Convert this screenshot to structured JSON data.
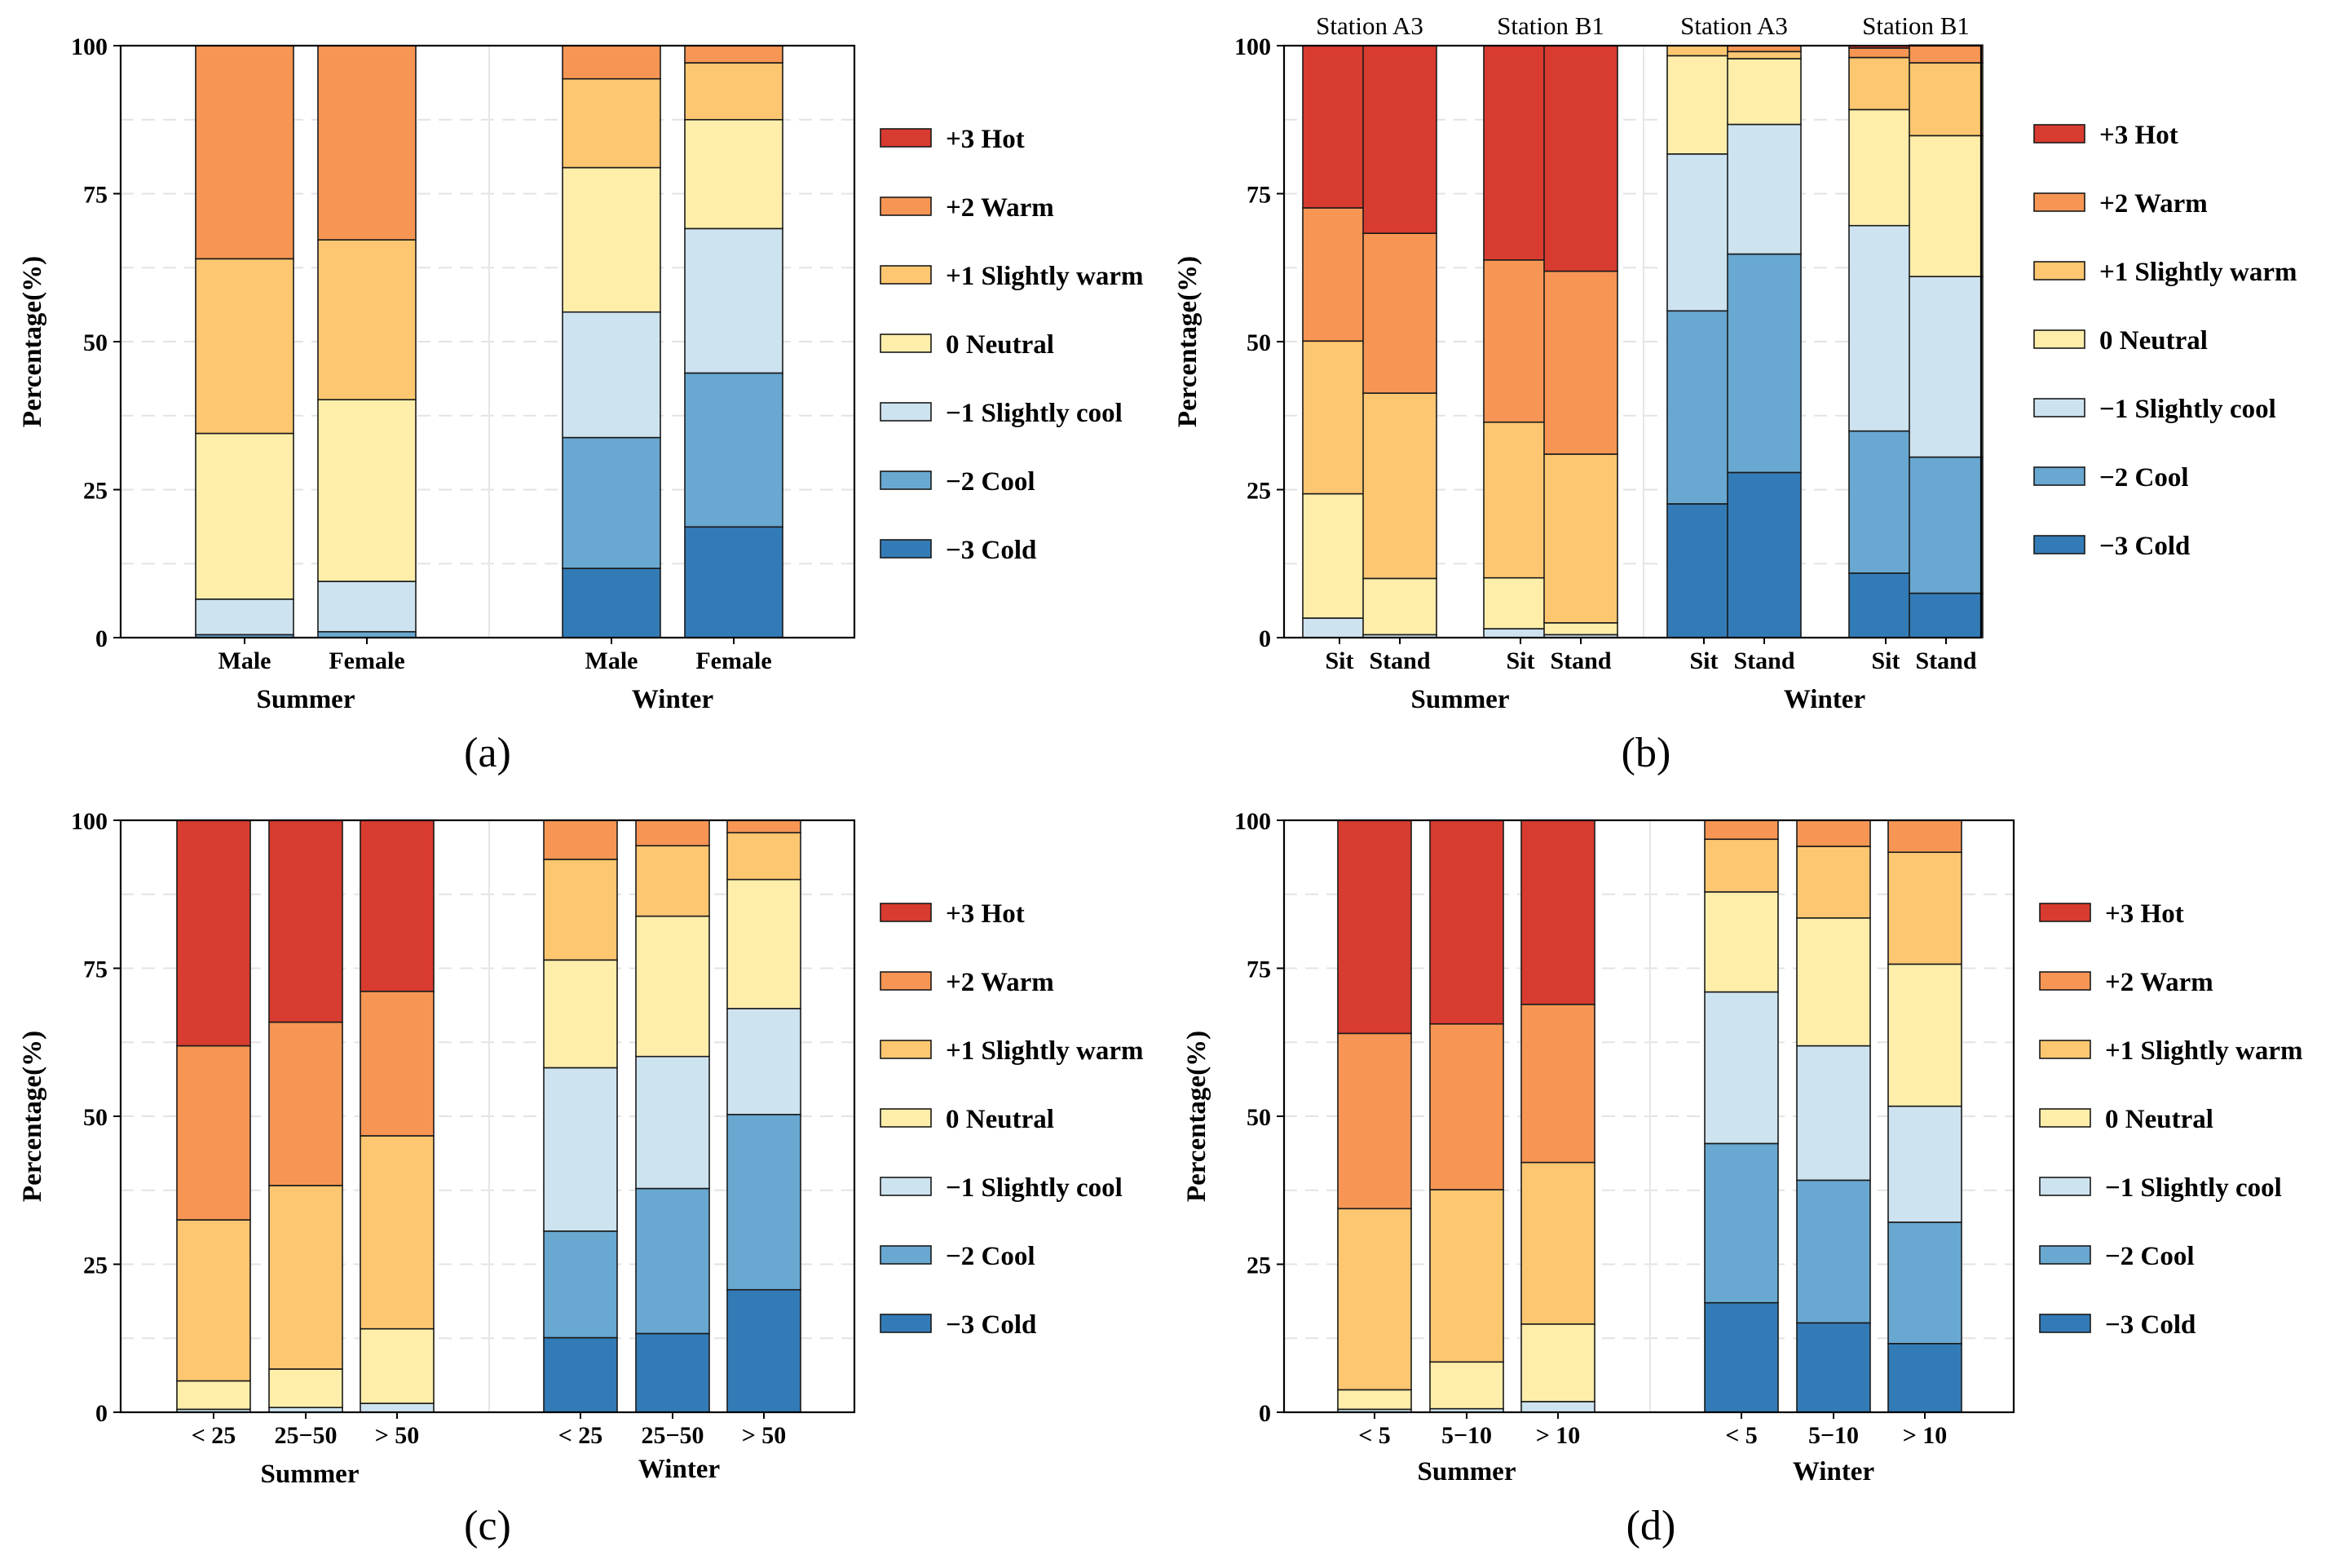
{
  "figure": {
    "legend": [
      {
        "label": "+3 Hot",
        "color": "#d83b2f"
      },
      {
        "label": "+2 Warm",
        "color": "#f79654"
      },
      {
        "label": "+1 Slightly warm",
        "color": "#fdc771"
      },
      {
        "label": " 0  Neutral",
        "color": "#feeeaa"
      },
      {
        "label": "−1 Slightly cool",
        "color": "#cde3f0"
      },
      {
        "label": "−2 Cool",
        "color": "#68a8d1"
      },
      {
        "label": "−3 Cold",
        "color": "#337bb6"
      }
    ],
    "y_axis_label": "Percentage(%)",
    "y_ticks": [
      "0",
      "25",
      "50",
      "75",
      "100"
    ]
  },
  "chart_data": [
    {
      "type": "bar",
      "stacked": true,
      "panel": "(a)",
      "ylabel": "Percentage(%)",
      "ylim": [
        0,
        100
      ],
      "grid": "horizontal dashed",
      "groups": [
        {
          "name": "Summer",
          "categories": [
            "Male",
            "Female"
          ]
        },
        {
          "name": "Winter",
          "categories": [
            "Male",
            "Female"
          ]
        }
      ],
      "bars": [
        {
          "category": "Male",
          "group": "Summer",
          "values": [
            0,
            0.5,
            6.0,
            28.0,
            29.5,
            36.0,
            0
          ]
        },
        {
          "category": "Female",
          "group": "Summer",
          "values": [
            0,
            1.0,
            8.5,
            30.7,
            27.0,
            32.8,
            0
          ]
        },
        {
          "category": "Male",
          "group": "Winter",
          "values": [
            11.7,
            22.1,
            21.2,
            24.4,
            15.0,
            5.6,
            0
          ]
        },
        {
          "category": "Female",
          "group": "Winter",
          "values": [
            18.7,
            26.0,
            24.4,
            18.4,
            9.6,
            2.9,
            0
          ]
        }
      ],
      "series_order": [
        "−3 Cold",
        "−2 Cool",
        "−1 Slightly cool",
        "0 Neutral",
        "+1 Slightly warm",
        "+2 Warm",
        "+3 Hot"
      ]
    },
    {
      "type": "bar",
      "stacked": true,
      "panel": "(b)",
      "ylabel": "Percentage(%)",
      "ylim": [
        0,
        100
      ],
      "grid": "horizontal dashed",
      "station_labels": [
        "Station A3",
        "Station B1",
        "Station A3",
        "Station B1"
      ],
      "groups": [
        {
          "name": "Summer",
          "categories": [
            "Sit",
            "Stand",
            "Sit",
            "Stand"
          ]
        },
        {
          "name": "Winter",
          "categories": [
            "Sit",
            "Stand",
            "Sit",
            "Stand"
          ]
        }
      ],
      "bars": [
        {
          "category": "Sit",
          "station": "Station A3",
          "group": "Summer",
          "values": [
            0,
            0,
            3.3,
            21.0,
            25.8,
            22.5,
            27.4
          ]
        },
        {
          "category": "Stand",
          "station": "Station A3",
          "group": "Summer",
          "values": [
            0,
            0,
            0.5,
            9.5,
            31.3,
            27.0,
            31.7
          ]
        },
        {
          "category": "Sit",
          "station": "Station B1",
          "group": "Summer",
          "values": [
            0,
            0,
            1.5,
            8.6,
            26.3,
            27.4,
            36.2
          ]
        },
        {
          "category": "Stand",
          "station": "Station B1",
          "group": "Summer",
          "values": [
            0,
            0,
            0.5,
            2.0,
            28.5,
            30.9,
            38.1
          ]
        },
        {
          "category": "Sit",
          "station": "Station A3",
          "group": "Winter",
          "values": [
            22.6,
            32.6,
            26.5,
            16.6,
            1.7,
            0,
            0
          ]
        },
        {
          "category": "Stand",
          "station": "Station A3",
          "group": "Winter",
          "values": [
            27.9,
            36.9,
            21.9,
            11.1,
            1.2,
            1.0,
            0
          ]
        },
        {
          "category": "Sit",
          "station": "Station B1",
          "group": "Winter",
          "values": [
            10.9,
            24.0,
            34.7,
            19.6,
            8.8,
            1.6,
            0.4
          ]
        },
        {
          "category": "Stand",
          "station": "Station B1",
          "group": "Winter",
          "values": [
            7.5,
            23.0,
            30.5,
            23.8,
            12.3,
            3.0,
            0
          ]
        }
      ],
      "series_order": [
        "−3 Cold",
        "−2 Cool",
        "−1 Slightly cool",
        "0 Neutral",
        "+1 Slightly warm",
        "+2 Warm",
        "+3 Hot"
      ]
    },
    {
      "type": "bar",
      "stacked": true,
      "panel": "(c)",
      "ylabel": "Percentage(%)",
      "ylim": [
        0,
        100
      ],
      "grid": "horizontal dashed",
      "groups": [
        {
          "name": "Summer",
          "categories": [
            "< 25",
            "25−50",
            "> 50"
          ]
        },
        {
          "name": "Winter",
          "categories": [
            "< 25",
            "25−50",
            "> 50"
          ]
        }
      ],
      "bars": [
        {
          "category": "< 25",
          "group": "Summer",
          "values": [
            0,
            0,
            0.5,
            4.8,
            27.2,
            29.4,
            38.1
          ]
        },
        {
          "category": "25−50",
          "group": "Summer",
          "values": [
            0,
            0,
            0.8,
            6.5,
            31.0,
            27.6,
            34.1
          ]
        },
        {
          "category": "> 50",
          "group": "Summer",
          "values": [
            0,
            0,
            1.5,
            12.6,
            32.6,
            24.4,
            28.9
          ]
        },
        {
          "category": "< 25",
          "group": "Winter",
          "values": [
            12.6,
            18.0,
            27.6,
            18.2,
            17.0,
            6.6,
            0
          ]
        },
        {
          "category": "25−50",
          "group": "Winter",
          "values": [
            13.3,
            24.5,
            22.3,
            23.7,
            11.9,
            4.3,
            0
          ]
        },
        {
          "category": "> 50",
          "group": "Winter",
          "values": [
            20.7,
            29.6,
            17.9,
            21.8,
            7.9,
            2.1,
            0
          ]
        }
      ],
      "series_order": [
        "−3 Cold",
        "−2 Cool",
        "−1 Slightly cool",
        "0 Neutral",
        "+1 Slightly warm",
        "+2 Warm",
        "+3 Hot"
      ]
    },
    {
      "type": "bar",
      "stacked": true,
      "panel": "(d)",
      "ylabel": "Percentage(%)",
      "ylim": [
        0,
        100
      ],
      "grid": "horizontal dashed",
      "groups": [
        {
          "name": "Summer",
          "categories": [
            "< 5",
            "5−10",
            "> 10"
          ]
        },
        {
          "name": "Winter",
          "categories": [
            "< 5",
            "5−10",
            "> 10"
          ]
        }
      ],
      "bars": [
        {
          "category": "< 5",
          "group": "Summer",
          "values": [
            0,
            0,
            0.5,
            3.3,
            30.6,
            29.6,
            36.0
          ]
        },
        {
          "category": "5−10",
          "group": "Summer",
          "values": [
            0,
            0,
            0.6,
            7.9,
            29.1,
            28.0,
            34.4
          ]
        },
        {
          "category": "> 10",
          "group": "Summer",
          "values": [
            0,
            0,
            1.8,
            13.1,
            27.3,
            26.7,
            31.1
          ]
        },
        {
          "category": "< 5",
          "group": "Winter",
          "values": [
            18.5,
            26.9,
            25.6,
            16.9,
            8.9,
            3.2,
            0
          ]
        },
        {
          "category": "5−10",
          "group": "Winter",
          "values": [
            15.1,
            24.1,
            22.7,
            21.6,
            12.1,
            4.4,
            0
          ]
        },
        {
          "category": "> 10",
          "group": "Winter",
          "values": [
            11.6,
            20.5,
            19.6,
            24.0,
            18.9,
            5.4,
            0
          ]
        }
      ],
      "series_order": [
        "−3 Cold",
        "−2 Cool",
        "−1 Slightly cool",
        "0 Neutral",
        "+1 Slightly warm",
        "+2 Warm",
        "+3 Hot"
      ]
    }
  ]
}
